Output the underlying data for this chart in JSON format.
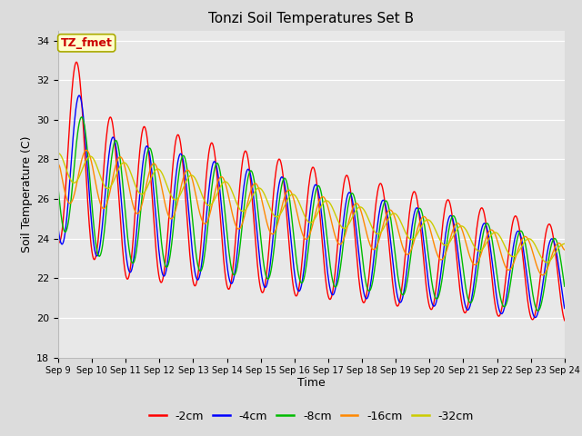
{
  "title": "Tonzi Soil Temperatures Set B",
  "xlabel": "Time",
  "ylabel": "Soil Temperature (C)",
  "ylim": [
    18,
    34.5
  ],
  "background_color": "#dcdcdc",
  "plot_bg_color": "#e8e8e8",
  "series_colors": [
    "#ff0000",
    "#0000ff",
    "#00bb00",
    "#ff8800",
    "#cccc00"
  ],
  "series_labels": [
    "-2cm",
    "-4cm",
    "-8cm",
    "-16cm",
    "-32cm"
  ],
  "annotation_text": "TZ_fmet",
  "annotation_bg": "#ffffcc",
  "annotation_border": "#aaaa00",
  "annotation_text_color": "#cc0000",
  "tick_labels": [
    "Sep 9",
    "Sep 10",
    "Sep 11",
    "Sep 12",
    "Sep 13",
    "Sep 14",
    "Sep 15",
    "Sep 16",
    "Sep 17",
    "Sep 18",
    "Sep 19",
    "Sep 20",
    "Sep 21",
    "Sep 22",
    "Sep 23",
    "Sep 24"
  ],
  "yticks": [
    18,
    20,
    22,
    24,
    26,
    28,
    30,
    32,
    34
  ]
}
